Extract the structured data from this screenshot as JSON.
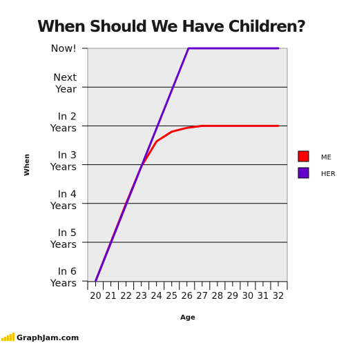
{
  "chart_data": {
    "type": "line",
    "title": "When Should We Have Children?",
    "xlabel": "Age",
    "ylabel": "When",
    "x_ticks": [
      20,
      21,
      22,
      23,
      24,
      25,
      26,
      27,
      28,
      29,
      30,
      31,
      32
    ],
    "y_ticks": [
      {
        "label": [
          "Now!"
        ],
        "value": 0
      },
      {
        "label": [
          "Next",
          "Year"
        ],
        "value": 1
      },
      {
        "label": [
          "In 2",
          "Years"
        ],
        "value": 2
      },
      {
        "label": [
          "In 3",
          "Years"
        ],
        "value": 3
      },
      {
        "label": [
          "In 4",
          "Years"
        ],
        "value": 4
      },
      {
        "label": [
          "In 5",
          "Years"
        ],
        "value": 5
      },
      {
        "label": [
          "In 6",
          "Years"
        ],
        "value": 6
      }
    ],
    "ylim": [
      6,
      0
    ],
    "xlim": [
      19.5,
      32.6
    ],
    "grid": true,
    "legend_position": "right",
    "series": [
      {
        "name": "ME",
        "color": "#ff0000",
        "points": [
          [
            20,
            6
          ],
          [
            21,
            5
          ],
          [
            22,
            4
          ],
          [
            23,
            3.05
          ],
          [
            24,
            2.4
          ],
          [
            25,
            2.15
          ],
          [
            26,
            2.05
          ],
          [
            27,
            2.0
          ],
          [
            28,
            2.0
          ],
          [
            29,
            2.0
          ],
          [
            30,
            2.0
          ],
          [
            31,
            2.0
          ],
          [
            32,
            2.0
          ]
        ]
      },
      {
        "name": "HER",
        "color": "#6600cc",
        "points": [
          [
            20,
            6
          ],
          [
            26.1,
            0
          ],
          [
            32,
            0
          ]
        ]
      }
    ]
  },
  "footer": {
    "brand": "GraphJam.com"
  }
}
